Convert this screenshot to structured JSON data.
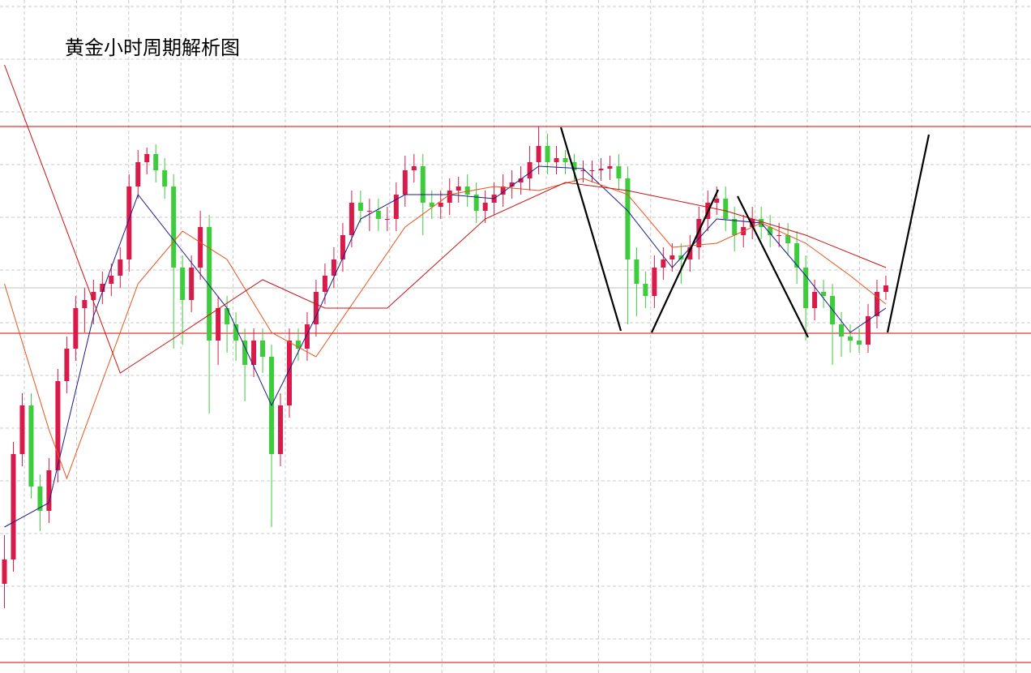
{
  "chart_data": {
    "type": "candlestick",
    "title": "黄金小时周期解析图",
    "ylim": [
      0,
      830
    ],
    "xlim": [
      -0.5,
      115.3
    ],
    "up_color": "#d81b4a",
    "down_color": "#3ccc3c",
    "open": [
      110,
      140,
      270,
      330,
      230,
      200,
      250,
      360,
      400,
      450,
      460,
      470,
      480,
      490,
      510,
      600,
      630,
      640,
      620,
      600,
      500,
      460,
      500,
      550,
      410,
      450,
      430,
      410,
      380,
      410,
      390,
      270,
      330,
      410,
      400,
      430,
      470,
      490,
      510,
      540,
      580,
      570,
      570,
      560,
      560,
      590,
      620,
      625,
      580,
      575,
      580,
      595,
      600,
      590,
      570,
      580,
      590,
      600,
      605,
      610,
      630,
      650,
      630,
      635,
      630,
      620,
      620,
      620,
      622,
      625,
      610,
      510,
      480,
      465,
      500,
      510,
      515,
      510,
      525,
      560,
      580,
      585,
      560,
      540,
      550,
      560,
      550,
      540,
      540,
      530,
      500,
      450,
      470,
      465,
      430,
      415,
      410,
      405,
      440,
      470
    ],
    "high": [
      170,
      285,
      345,
      345,
      245,
      265,
      375,
      415,
      465,
      475,
      485,
      495,
      505,
      525,
      615,
      645,
      648,
      652,
      635,
      615,
      515,
      515,
      570,
      565,
      465,
      465,
      445,
      425,
      425,
      425,
      405,
      345,
      425,
      425,
      445,
      485,
      505,
      525,
      555,
      595,
      595,
      585,
      585,
      575,
      605,
      638,
      640,
      640,
      595,
      595,
      610,
      612,
      615,
      605,
      595,
      605,
      615,
      620,
      625,
      650,
      674,
      665,
      650,
      645,
      640,
      632,
      632,
      635,
      638,
      640,
      625,
      525,
      495,
      515,
      525,
      530,
      530,
      540,
      575,
      595,
      600,
      600,
      575,
      565,
      575,
      575,
      565,
      555,
      555,
      545,
      515,
      485,
      485,
      480,
      445,
      430,
      425,
      455,
      485,
      490
    ],
    "low": [
      80,
      125,
      255,
      215,
      175,
      185,
      235,
      345,
      385,
      420,
      430,
      455,
      465,
      475,
      495,
      585,
      615,
      605,
      585,
      400,
      405,
      445,
      485,
      320,
      380,
      395,
      385,
      335,
      365,
      370,
      180,
      255,
      315,
      385,
      385,
      415,
      455,
      475,
      495,
      525,
      555,
      545,
      545,
      545,
      545,
      575,
      605,
      540,
      560,
      560,
      565,
      580,
      575,
      555,
      555,
      565,
      575,
      585,
      590,
      595,
      615,
      615,
      615,
      615,
      605,
      605,
      605,
      607,
      608,
      595,
      430,
      440,
      450,
      450,
      485,
      495,
      480,
      495,
      510,
      545,
      565,
      545,
      520,
      525,
      535,
      535,
      525,
      525,
      515,
      480,
      410,
      435,
      450,
      380,
      390,
      395,
      395,
      395,
      425,
      460
    ],
    "close": [
      140,
      270,
      330,
      230,
      200,
      250,
      360,
      400,
      450,
      460,
      470,
      480,
      490,
      510,
      600,
      630,
      640,
      620,
      600,
      500,
      460,
      500,
      550,
      410,
      450,
      430,
      410,
      380,
      410,
      390,
      270,
      330,
      410,
      400,
      430,
      470,
      490,
      510,
      540,
      580,
      570,
      570,
      560,
      560,
      590,
      620,
      625,
      580,
      575,
      580,
      595,
      600,
      590,
      570,
      580,
      590,
      600,
      605,
      610,
      630,
      650,
      630,
      635,
      630,
      620,
      620,
      620,
      622,
      625,
      610,
      510,
      480,
      465,
      500,
      510,
      515,
      510,
      525,
      560,
      580,
      585,
      560,
      540,
      550,
      560,
      550,
      540,
      540,
      530,
      500,
      450,
      470,
      465,
      430,
      415,
      410,
      405,
      440,
      470,
      478
    ],
    "lines": [
      {
        "color": "#1a1a8c",
        "x": [
          0,
          5,
          10,
          15,
          20,
          25,
          30,
          35,
          40,
          45,
          50,
          55,
          60,
          65,
          70,
          75,
          80,
          85,
          90,
          95,
          99
        ],
        "values": [
          180,
          210,
          440,
          590,
          520,
          450,
          330,
          440,
          560,
          590,
          590,
          585,
          625,
          622,
          570,
          500,
          560,
          555,
          490,
          420,
          450
        ]
      },
      {
        "color": "#e8541c",
        "x": [
          0,
          5,
          7,
          10,
          15,
          20,
          25,
          30,
          35,
          40,
          45,
          50,
          55,
          60,
          65,
          70,
          75,
          80,
          85,
          90,
          95,
          99
        ],
        "values": [
          480,
          300,
          240,
          330,
          480,
          545,
          510,
          420,
          390,
          470,
          550,
          590,
          600,
          595,
          610,
          590,
          525,
          530,
          555,
          530,
          490,
          455
        ]
      },
      {
        "color": "#cc1111",
        "x": [
          0,
          13,
          20,
          29,
          36,
          43,
          54,
          63,
          70,
          81,
          90,
          99
        ],
        "values": [
          750,
          370,
          420,
          485,
          450,
          450,
          560,
          605,
          595,
          570,
          540,
          500
        ]
      }
    ],
    "levels": [
      {
        "value": 674,
        "color": "#dd0000"
      },
      {
        "value": 419,
        "color": "#dd0000"
      },
      {
        "value": 13,
        "color": "#dd0000"
      },
      {
        "value": 475,
        "color": "#c0c0c0"
      }
    ]
  }
}
